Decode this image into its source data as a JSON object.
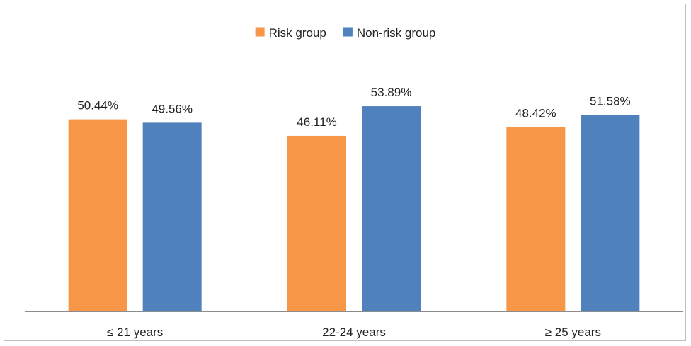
{
  "chart_data": {
    "type": "bar",
    "title": "",
    "xlabel": "",
    "ylabel": "",
    "categories": [
      "≤ 21 years",
      "22-24 years",
      "≥ 25 years"
    ],
    "series": [
      {
        "name": "Risk group",
        "color": "#f79646",
        "values": [
          50.44,
          46.11,
          48.42
        ],
        "labels": [
          "50.44%",
          "46.11%",
          "48.42%"
        ]
      },
      {
        "name": "Non-risk group",
        "color": "#4f81bd",
        "values": [
          49.56,
          53.89,
          51.58
        ],
        "labels": [
          "49.56%",
          "53.89%",
          "51.58%"
        ]
      }
    ],
    "ylim": [
      0,
      60
    ],
    "grid": false,
    "legend_position": "top-center",
    "data_labels": true,
    "y_axis_visible": false
  }
}
